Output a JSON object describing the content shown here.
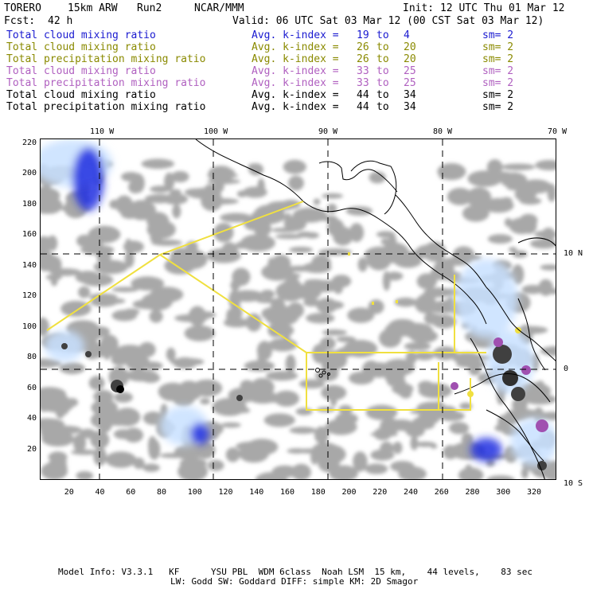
{
  "header": {
    "model": "TORERO",
    "resolution": "15km ARW",
    "run": "Run2",
    "org": "NCAR/MMM",
    "init": "Init: 12 UTC Thu 01 Mar 12",
    "fcst_label": "Fcst:",
    "fcst_hours": "42 h",
    "valid": "Valid: 06 UTC Sat 03 Mar 12 (00 CST Sat 03 Mar 12)"
  },
  "legend": [
    {
      "field": "Total cloud mixing ratio",
      "kindex": "Avg. k-index = ",
      "from": "19",
      "to_word": "to",
      "to": "4",
      "sm": "sm= 2",
      "color": "#1a1ad0"
    },
    {
      "field": "Total cloud mixing ratio",
      "kindex": "Avg. k-index = ",
      "from": "26",
      "to_word": "to",
      "to": "20",
      "sm": "sm= 2",
      "color": "#8a8a00"
    },
    {
      "field": "Total precipitation mixing ratio",
      "kindex": "Avg. k-index = ",
      "from": "26",
      "to_word": "to",
      "to": "20",
      "sm": "sm= 2",
      "color": "#8a8a00"
    },
    {
      "field": "Total cloud mixing ratio",
      "kindex": "Avg. k-index = ",
      "from": "33",
      "to_word": "to",
      "to": "25",
      "sm": "sm= 2",
      "color": "#b060c0"
    },
    {
      "field": "Total precipitation mixing ratio",
      "kindex": "Avg. k-index = ",
      "from": "33",
      "to_word": "to",
      "to": "25",
      "sm": "sm= 2",
      "color": "#b060c0"
    },
    {
      "field": "Total cloud mixing ratio",
      "kindex": "Avg. k-index = ",
      "from": "44",
      "to_word": "to",
      "to": "34",
      "sm": "sm= 2",
      "color": "#000000"
    },
    {
      "field": "Total precipitation mixing ratio",
      "kindex": "Avg. k-index = ",
      "from": "44",
      "to_word": "to",
      "to": "34",
      "sm": "sm= 2",
      "color": "#000000"
    }
  ],
  "map": {
    "lon_labels": [
      "110 W",
      "100 W",
      "90 W",
      "80 W",
      "70 W"
    ],
    "lat_labels": [
      "10 N",
      "0",
      "10 S"
    ],
    "x_ticks": [
      "20",
      "40",
      "60",
      "80",
      "100",
      "120",
      "140",
      "160",
      "180",
      "200",
      "220",
      "240",
      "260",
      "280",
      "300",
      "320"
    ],
    "y_ticks": [
      "220",
      "200",
      "180",
      "160",
      "140",
      "120",
      "100",
      "80",
      "60",
      "40",
      "20"
    ],
    "grid_i": [
      0,
      335
    ],
    "grid_j": [
      0,
      223
    ],
    "colors": {
      "cloud_gray": "#a8a8a8",
      "dark_cloud": "#404040",
      "blue": "#1e2ee0",
      "light_blue": "#c8e0ff",
      "purple": "#a050b0",
      "yellow_line": "#f0e040"
    }
  },
  "footer": {
    "line1": "Model Info: V3.3.1   KF      YSU PBL  WDM 6class  Noah LSM  15 km,    44 levels,    83 sec",
    "line2": "LW: Godd SW: Goddard DIFF: simple KM: 2D Smagor"
  }
}
